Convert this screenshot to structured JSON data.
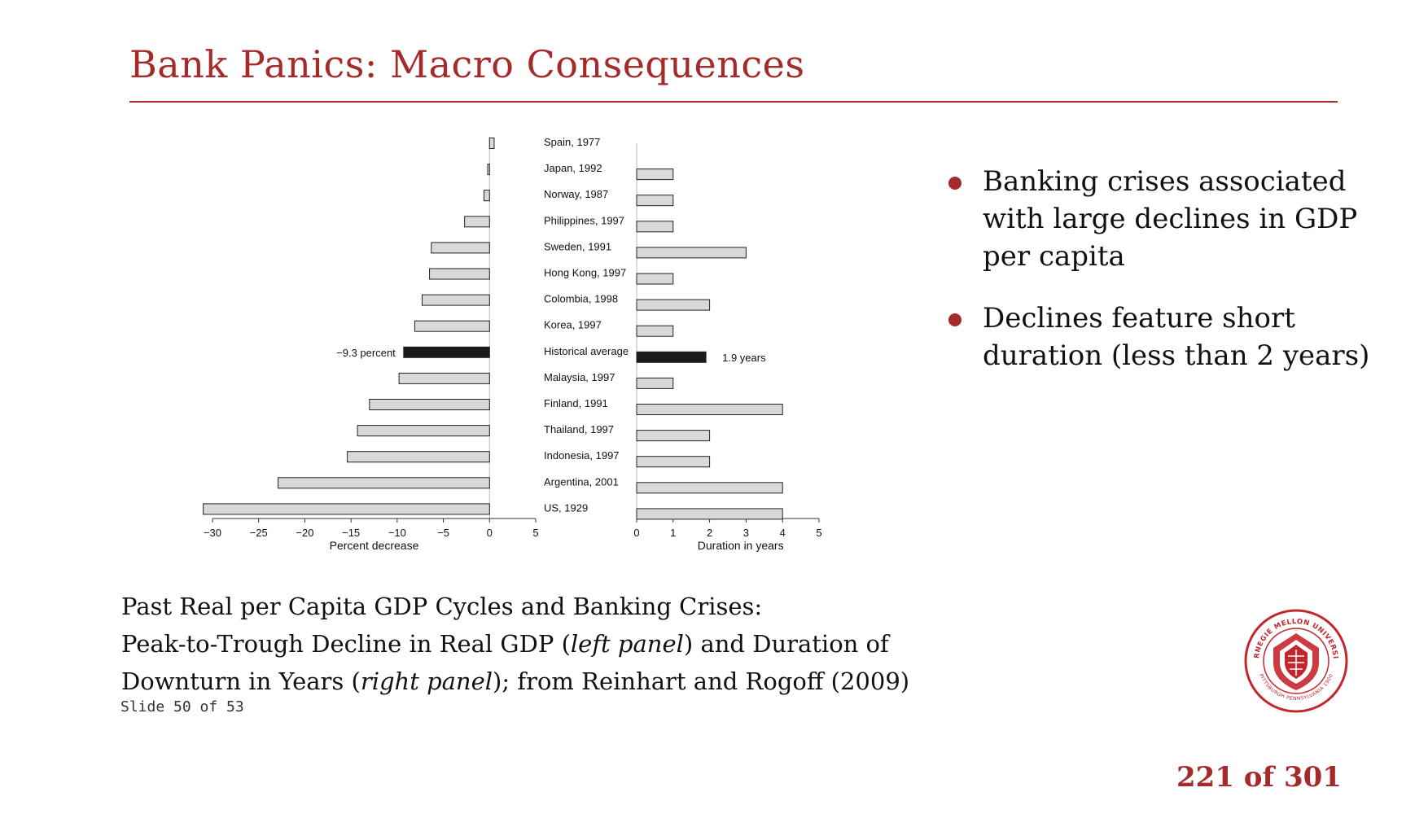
{
  "slide": {
    "title": "Bank Panics: Macro Consequences",
    "bullets": [
      "Banking crises associated with large declines in GDP per capita",
      "Declines feature short duration (less than 2 years)"
    ],
    "caption": {
      "line1": "Past Real per Capita GDP Cycles and Banking Crises:",
      "line2_a": "Peak-to-Trough Decline in Real GDP (",
      "line2_b": "left panel",
      "line2_c": ") and Duration of",
      "line3_a": "Downturn in Years (",
      "line3_b": "right panel",
      "line3_c": "); from Reinhart and Rogoff (2009)"
    },
    "slide_counter": "Slide 50 of 53",
    "page_number": "221 of 301",
    "logo": {
      "text": "CARNEGIE MELLON UNIVERSITY",
      "text_bottom": "PITTSBURGH PENNSYLVANIA 1900",
      "color": "#c4262e"
    }
  },
  "chart_data": [
    {
      "type": "bar",
      "orientation": "horizontal",
      "categories": [
        "Spain, 1977",
        "Japan, 1992",
        "Norway, 1987",
        "Philippines, 1997",
        "Sweden, 1991",
        "Hong Kong, 1997",
        "Colombia, 1998",
        "Korea, 1997",
        "Historical average",
        "Malaysia, 1997",
        "Finland, 1991",
        "Thailand, 1997",
        "Indonesia, 1997",
        "Argentina, 2001",
        "US, 1929"
      ],
      "values": [
        0.5,
        -0.2,
        -0.6,
        -2.7,
        -6.3,
        -6.5,
        -7.3,
        -8.1,
        -9.3,
        -9.8,
        -13.0,
        -14.3,
        -15.4,
        -22.9,
        -31.0
      ],
      "highlight": {
        "category": "Historical average",
        "label": "−9.3 percent"
      },
      "xlabel": "Percent decrease",
      "xlim": [
        -30,
        5
      ],
      "xticks": [
        "−30",
        "−25",
        "−20",
        "−15",
        "−10",
        "−5",
        "0",
        "5"
      ],
      "colors": {
        "bar": "#d9d9d9",
        "highlight": "#1a1a1a"
      }
    },
    {
      "type": "bar",
      "orientation": "horizontal",
      "categories": [
        "Spain, 1977",
        "Japan, 1992",
        "Norway, 1987",
        "Philippines, 1997",
        "Sweden, 1991",
        "Hong Kong, 1997",
        "Colombia, 1998",
        "Korea, 1997",
        "Historical average",
        "Malaysia, 1997",
        "Finland, 1991",
        "Thailand, 1997",
        "Indonesia, 1997",
        "Argentina, 2001",
        "US, 1929"
      ],
      "values": [
        0,
        1,
        1,
        1,
        3,
        1,
        2,
        1,
        1.9,
        1,
        4,
        2,
        2,
        4,
        4
      ],
      "highlight": {
        "category": "Historical average",
        "label": "1.9 years"
      },
      "xlabel": "Duration in years",
      "xlim": [
        0,
        5
      ],
      "xticks": [
        "0",
        "1",
        "2",
        "3",
        "4",
        "5"
      ],
      "colors": {
        "bar": "#d9d9d9",
        "highlight": "#1a1a1a"
      }
    }
  ]
}
